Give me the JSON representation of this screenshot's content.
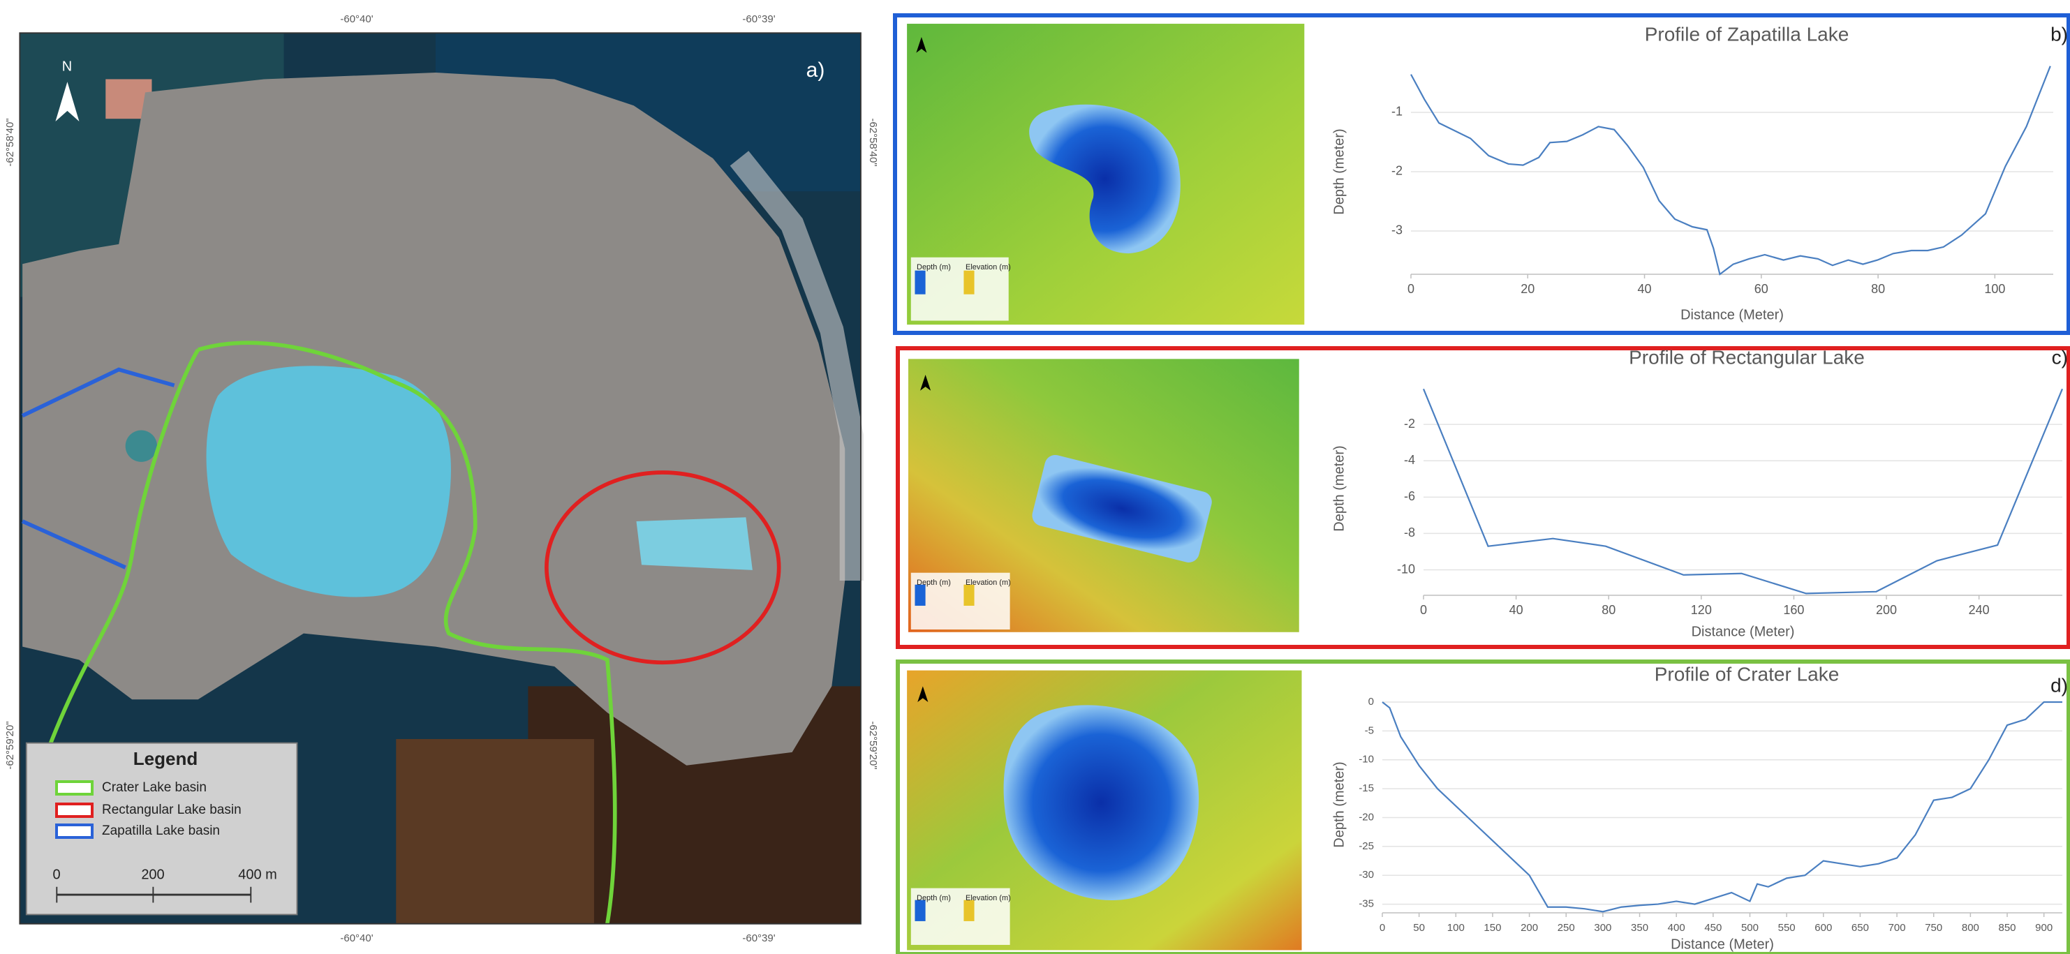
{
  "map": {
    "label": "a)",
    "north": "N",
    "top_ticks": [
      "-60°40'",
      "-60°39'"
    ],
    "bottom_ticks": [
      "-60°40'",
      "-60°39'"
    ],
    "left_ticks": [
      "-62°58'40\"",
      "-62°59'20\""
    ],
    "right_ticks": [
      "-62°58'40\"",
      "-62°59'20\""
    ],
    "legend": {
      "title": "Legend",
      "items": [
        {
          "label": "Crater Lake basin",
          "color": "#6fd43a"
        },
        {
          "label": "Rectangular Lake basin",
          "color": "#e02020"
        },
        {
          "label": "Zapatilla Lake basin",
          "color": "#2a62d8"
        }
      ]
    },
    "scale": [
      "0",
      "200",
      "400 m"
    ]
  },
  "chart_data": [
    {
      "type": "line",
      "label": "b)",
      "title": "Profile of Zapatilla Lake",
      "xlabel": "Distance (Meter)",
      "ylabel": "Depth (meter)",
      "frame_color": "#1f5fd6",
      "color": "#4a7fc1",
      "grid": true,
      "inset_labels": [
        "Depth (m)",
        "Elevation (m)"
      ],
      "x": [
        0,
        2.3,
        4.8,
        10.2,
        13.3,
        16.7,
        19.2,
        21.9,
        23.8,
        26.7,
        29.4,
        32.1,
        34.8,
        37.1,
        39.8,
        42.5,
        45.2,
        48.2,
        50.7,
        51.8,
        52.9,
        55.2,
        57.9,
        60.6,
        63.8,
        66.7,
        69.7,
        72.2,
        74.9,
        77.4,
        79.9,
        82.6,
        85.7,
        88.5,
        91.2,
        94.3,
        98.4,
        101.8,
        105.4,
        109.5
      ],
      "values": [
        -0.36,
        -0.78,
        -1.18,
        -1.44,
        -1.73,
        -1.87,
        -1.89,
        -1.76,
        -1.51,
        -1.49,
        -1.38,
        -1.24,
        -1.29,
        -1.56,
        -1.93,
        -2.49,
        -2.8,
        -2.93,
        -2.98,
        -3.29,
        -3.73,
        -3.56,
        -3.47,
        -3.4,
        -3.49,
        -3.42,
        -3.47,
        -3.58,
        -3.49,
        -3.56,
        -3.49,
        -3.38,
        -3.33,
        -3.33,
        -3.27,
        -3.07,
        -2.71,
        -1.91,
        -1.24,
        -0.22
      ],
      "xlim": [
        0,
        110
      ],
      "ylim": [
        -3.73,
        -0.2
      ],
      "xticks": [
        0,
        20,
        40,
        60,
        80,
        100
      ],
      "yticks": [
        -1,
        -2,
        -3
      ]
    },
    {
      "type": "line",
      "label": "c)",
      "title": "Profile of Rectangular Lake",
      "xlabel": "Distance (Meter)",
      "ylabel": "Depth (meter)",
      "frame_color": "#e02020",
      "color": "#4a7fc1",
      "grid": true,
      "inset_labels": [
        "Depth (m)",
        "Elevation (m)"
      ],
      "x": [
        0,
        27.9,
        55.9,
        78.7,
        112.3,
        137.4,
        165.3,
        195.6,
        221.8,
        248,
        276
      ],
      "values": [
        -0.05,
        -8.7,
        -8.28,
        -8.7,
        -10.28,
        -10.2,
        -11.3,
        -11.2,
        -9.5,
        -8.64,
        -0.05
      ],
      "xlim": [
        0,
        276
      ],
      "ylim": [
        -11.4,
        0
      ],
      "xticks": [
        0,
        40,
        80,
        120,
        160,
        200,
        240
      ],
      "yticks": [
        -2,
        -4,
        -6,
        -8,
        -10
      ]
    },
    {
      "type": "line",
      "label": "d)",
      "title": "Profile of Crater Lake",
      "xlabel": "Distance (Meter)",
      "ylabel": "Depth (meter)",
      "frame_color": "#7ac143",
      "color": "#4a7fc1",
      "grid": true,
      "inset_labels": [
        "Depth (m)",
        "Elevation (m)"
      ],
      "x": [
        0,
        10,
        25,
        50,
        75,
        100,
        125,
        150,
        175,
        200,
        225,
        250,
        275,
        300,
        325,
        350,
        375,
        400,
        425,
        450,
        475,
        500,
        510,
        525,
        550,
        575,
        600,
        625,
        650,
        675,
        700,
        725,
        750,
        775,
        800,
        825,
        850,
        875,
        900,
        925
      ],
      "values": [
        0,
        -1,
        -6,
        -11,
        -15,
        -18,
        -21,
        -24,
        -27,
        -30,
        -35.5,
        -35.5,
        -35.8,
        -36.3,
        -35.5,
        -35.2,
        -35,
        -34.5,
        -35,
        -34,
        -33,
        -34.5,
        -31.5,
        -32,
        -30.5,
        -30,
        -27.5,
        -28,
        -28.5,
        -28,
        -27,
        -23,
        -17,
        -16.5,
        -15,
        -10,
        -4,
        -3,
        0,
        0
      ],
      "xlim": [
        0,
        925
      ],
      "ylim": [
        -36.5,
        0
      ],
      "xticks": [
        0,
        50,
        100,
        150,
        200,
        250,
        300,
        350,
        400,
        450,
        500,
        550,
        600,
        650,
        700,
        750,
        800,
        850,
        900
      ],
      "yticks": [
        0,
        -5,
        -10,
        -15,
        -20,
        -25,
        -30,
        -35
      ]
    }
  ]
}
